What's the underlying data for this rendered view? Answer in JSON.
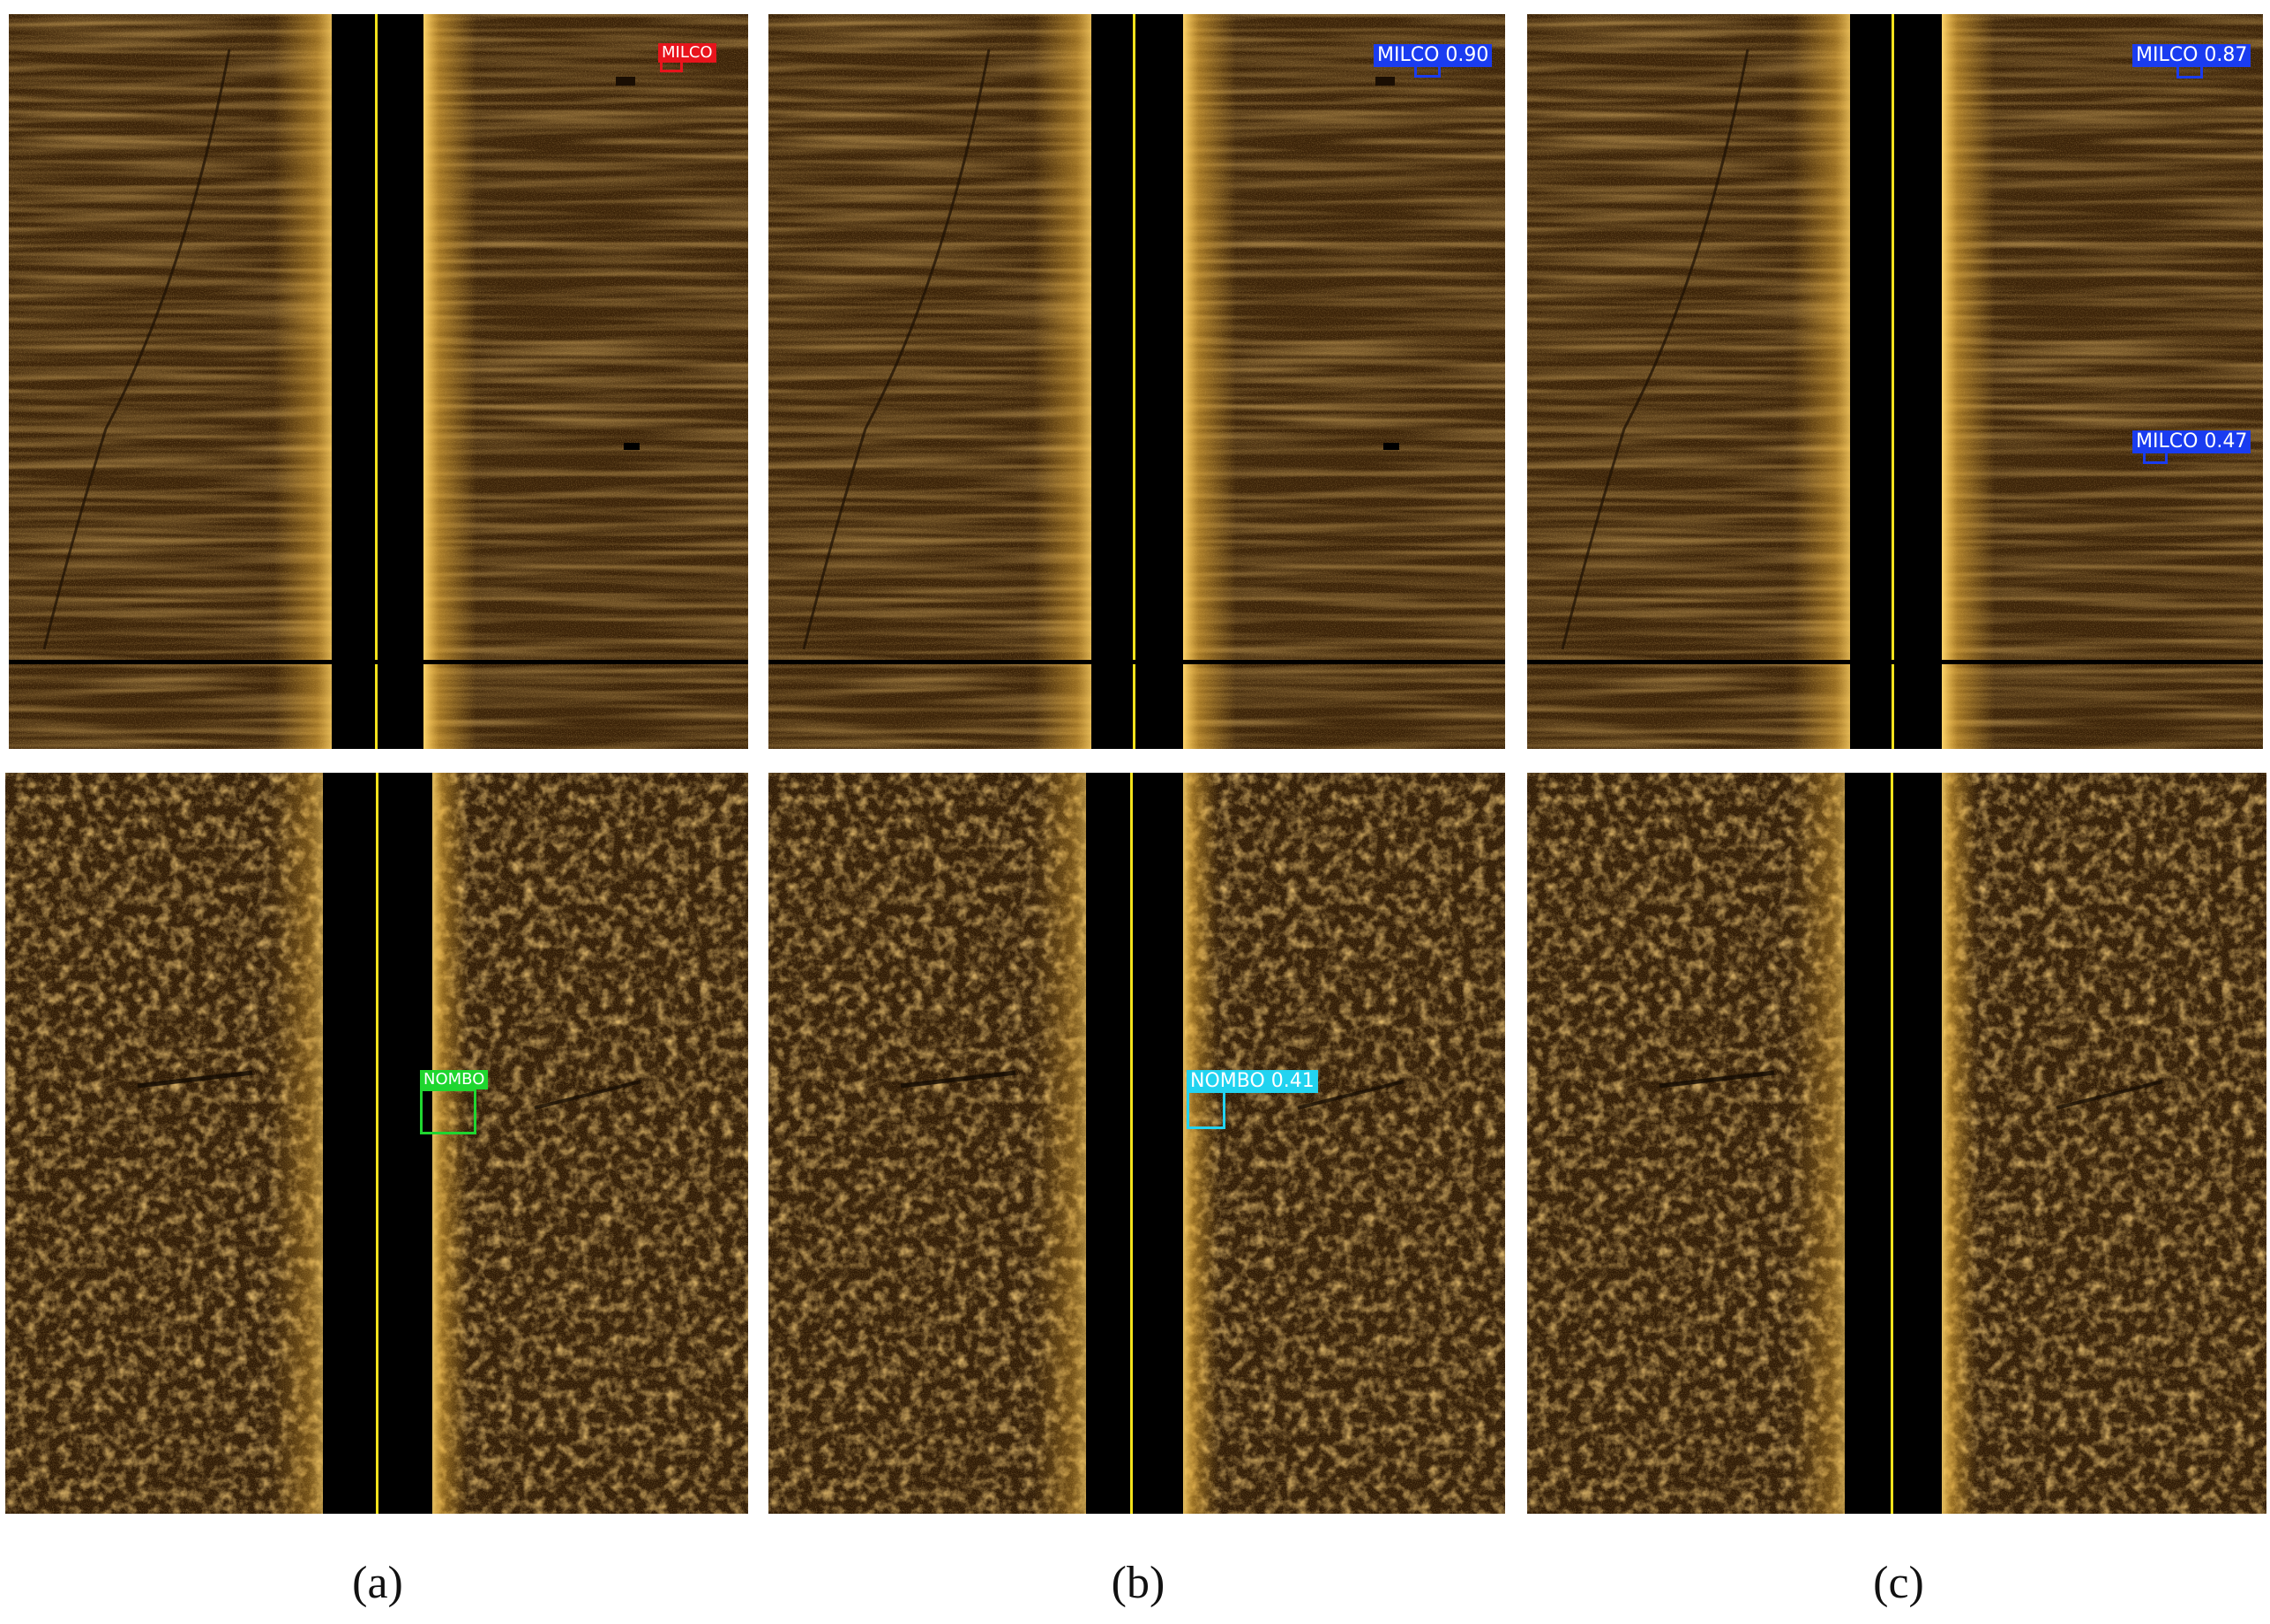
{
  "captions": [
    "(a)",
    "(b)",
    "(c)"
  ],
  "detections": {
    "a_top": [
      {
        "label": "MILCO",
        "color": "#e8141c"
      }
    ],
    "b_top": [
      {
        "label": "MILCO 0.90",
        "color": "#1a3cf0"
      }
    ],
    "c_top": [
      {
        "label": "MILCO 0.87",
        "color": "#1a3cf0"
      },
      {
        "label": "MILCO 0.47",
        "color": "#1a3cf0"
      }
    ],
    "a_bot": [
      {
        "label": "NOMBO",
        "color": "#1fd62f"
      }
    ],
    "b_bot": [
      {
        "label": "NOMBO 0.41",
        "color": "#22d3f0"
      }
    ],
    "c_bot": []
  },
  "colors": {
    "sonar_base": "#3a2208",
    "sonar_dark": "#1a0e03",
    "sonar_bright": "#f2b63a",
    "nadir": "#000000",
    "center_line": "#f4e21c"
  }
}
